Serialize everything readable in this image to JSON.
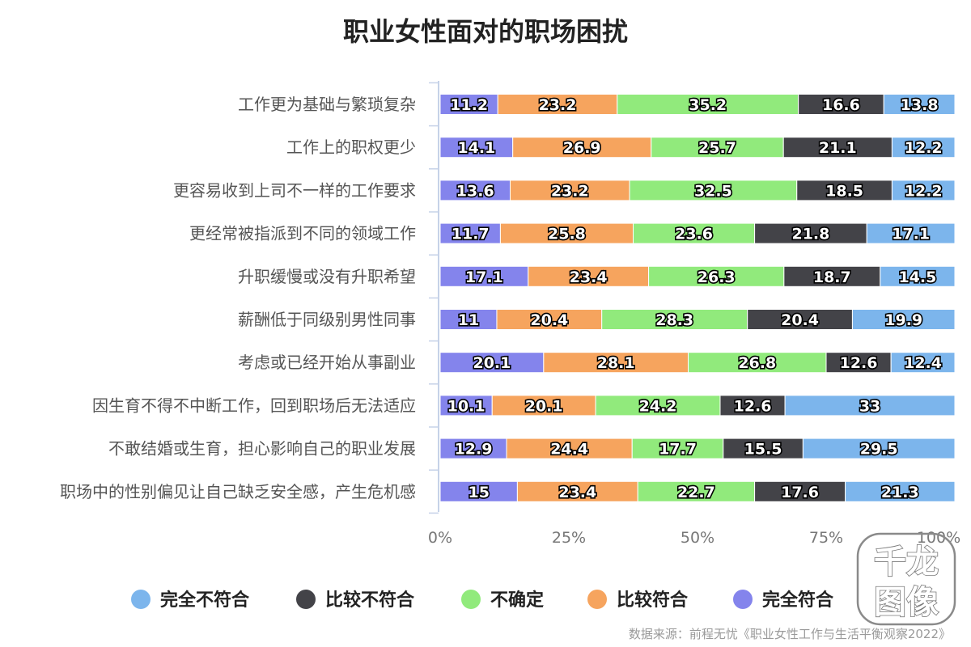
{
  "chart_data": {
    "type": "bar",
    "orientation": "horizontal",
    "stacked": "percent",
    "title": "职业女性面对的职场困扰",
    "categories": [
      "工作更为基础与繁琐复杂",
      "工作上的职权更少",
      "更容易收到上司不一样的工作要求",
      "更经常被指派到不同的领域工作",
      "升职缓慢或没有升职希望",
      "薪酬低于同级别男性同事",
      "考虑或已经开始从事副业",
      "因生育不得不中断工作，回到职场后无法适应",
      "不敢结婚或生育，担心影响自己的职业发展",
      "职场中的性别偏见让自己缺乏安全感，产生危机感"
    ],
    "series": [
      {
        "name": "完全符合",
        "color": "#8484ec",
        "values": [
          11.2,
          14.1,
          13.6,
          11.7,
          17.1,
          11,
          20.1,
          10.1,
          12.9,
          15
        ]
      },
      {
        "name": "比较符合",
        "color": "#f6a45e",
        "values": [
          23.2,
          26.9,
          23.2,
          25.8,
          23.4,
          20.4,
          28.1,
          20.1,
          24.4,
          23.4
        ]
      },
      {
        "name": "不确定",
        "color": "#91ea7c",
        "values": [
          35.2,
          25.7,
          32.5,
          23.6,
          26.3,
          28.3,
          26.8,
          24.2,
          17.7,
          22.7
        ]
      },
      {
        "name": "比较不符合",
        "color": "#434348",
        "values": [
          16.6,
          21.1,
          18.5,
          21.8,
          18.7,
          20.4,
          12.6,
          12.6,
          15.5,
          17.6
        ]
      },
      {
        "name": "完全不符合",
        "color": "#7cb5ec",
        "values": [
          13.8,
          12.2,
          12.2,
          17.1,
          14.5,
          19.9,
          12.4,
          33,
          29.5,
          21.3
        ]
      }
    ],
    "xticks": [
      "0%",
      "25%",
      "50%",
      "75%",
      "100%"
    ],
    "xlim": [
      0,
      100
    ],
    "legend": {
      "placement": "bottom",
      "order": [
        "完全不符合",
        "比较不符合",
        "不确定",
        "比较符合",
        "完全符合"
      ]
    },
    "grid": false
  },
  "source": "数据来源：前程无忧《职业女性工作与生活平衡观察2022》",
  "watermark": {
    "line1": "千龙",
    "line2": "图像"
  }
}
